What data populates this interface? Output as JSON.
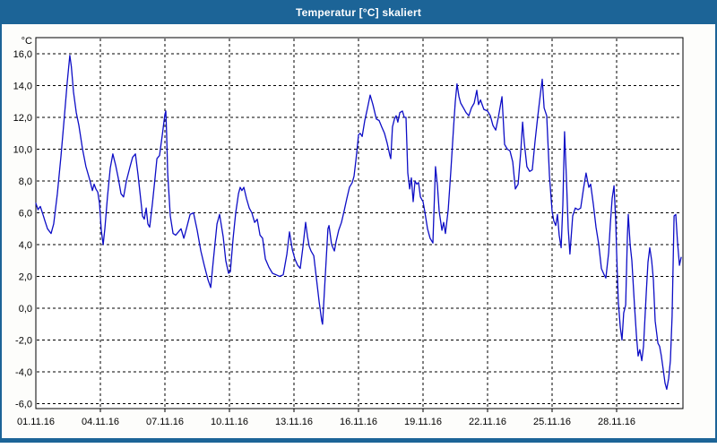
{
  "window": {
    "title": "Temperatur [°C] skaliert"
  },
  "colors": {
    "titlebar": "#1c6497",
    "window_border": "#1c6497",
    "line": "#0d0dc6",
    "grid": "#000000",
    "plot_background": "#ffffff",
    "label_text": "#000000"
  },
  "chart_data": {
    "type": "line",
    "title": "Temperatur [°C] skaliert",
    "unit_label": "°C",
    "series_name": "Temperatur",
    "grid": "dashed",
    "legend": "none",
    "x_axis": {
      "tick_labels": [
        "01.11.16",
        "04.11.16",
        "07.11.16",
        "10.11.16",
        "13.11.16",
        "16.11.16",
        "19.11.16",
        "22.11.16",
        "25.11.16",
        "28.11.16"
      ],
      "tick_days": [
        0,
        3,
        6,
        9,
        12,
        15,
        18,
        21,
        24,
        27
      ],
      "range_days": [
        0,
        30
      ]
    },
    "y_axis": {
      "tick_labels": [
        "16,0",
        "14,0",
        "12,0",
        "10,0",
        "8,0",
        "6,0",
        "4,0",
        "2,0",
        "0,0",
        "-2,0",
        "-4,0",
        "-6,0"
      ],
      "tick_values": [
        16,
        14,
        12,
        10,
        8,
        6,
        4,
        2,
        0,
        -2,
        -4,
        -6
      ],
      "range": [
        -6.3,
        17.0
      ]
    },
    "points": [
      [
        0.0,
        6.6
      ],
      [
        0.1,
        6.2
      ],
      [
        0.21,
        6.4
      ],
      [
        0.33,
        5.9
      ],
      [
        0.42,
        5.5
      ],
      [
        0.54,
        5.0
      ],
      [
        0.71,
        4.7
      ],
      [
        0.83,
        5.3
      ],
      [
        1.0,
        7.2
      ],
      [
        1.17,
        9.6
      ],
      [
        1.33,
        12.1
      ],
      [
        1.46,
        14.2
      ],
      [
        1.58,
        15.9
      ],
      [
        1.65,
        15.2
      ],
      [
        1.75,
        13.6
      ],
      [
        1.88,
        12.3
      ],
      [
        2.0,
        11.5
      ],
      [
        2.17,
        10.0
      ],
      [
        2.33,
        8.9
      ],
      [
        2.5,
        8.1
      ],
      [
        2.63,
        7.4
      ],
      [
        2.71,
        7.8
      ],
      [
        2.79,
        7.5
      ],
      [
        2.88,
        7.3
      ],
      [
        2.96,
        6.6
      ],
      [
        3.04,
        4.9
      ],
      [
        3.13,
        4.0
      ],
      [
        3.21,
        5.0
      ],
      [
        3.33,
        7.0
      ],
      [
        3.46,
        8.8
      ],
      [
        3.58,
        9.7
      ],
      [
        3.71,
        9.0
      ],
      [
        3.83,
        8.2
      ],
      [
        3.96,
        7.2
      ],
      [
        4.08,
        7.0
      ],
      [
        4.21,
        8.0
      ],
      [
        4.38,
        8.9
      ],
      [
        4.5,
        9.5
      ],
      [
        4.63,
        9.7
      ],
      [
        4.75,
        8.4
      ],
      [
        4.88,
        6.8
      ],
      [
        4.96,
        5.8
      ],
      [
        5.04,
        5.6
      ],
      [
        5.13,
        6.3
      ],
      [
        5.21,
        5.3
      ],
      [
        5.29,
        5.1
      ],
      [
        5.42,
        6.6
      ],
      [
        5.54,
        8.2
      ],
      [
        5.63,
        9.4
      ],
      [
        5.75,
        9.6
      ],
      [
        5.88,
        10.9
      ],
      [
        6.0,
        12.2
      ],
      [
        6.04,
        12.4
      ],
      [
        6.08,
        11.0
      ],
      [
        6.13,
        8.5
      ],
      [
        6.25,
        5.8
      ],
      [
        6.38,
        4.7
      ],
      [
        6.5,
        4.6
      ],
      [
        6.63,
        4.8
      ],
      [
        6.75,
        5.0
      ],
      [
        6.88,
        4.4
      ],
      [
        7.0,
        5.0
      ],
      [
        7.17,
        5.9
      ],
      [
        7.33,
        6.0
      ],
      [
        7.5,
        4.9
      ],
      [
        7.67,
        3.6
      ],
      [
        7.83,
        2.7
      ],
      [
        8.0,
        1.8
      ],
      [
        8.13,
        1.3
      ],
      [
        8.25,
        3.0
      ],
      [
        8.42,
        5.3
      ],
      [
        8.54,
        5.9
      ],
      [
        8.71,
        4.5
      ],
      [
        8.83,
        3.0
      ],
      [
        8.96,
        2.2
      ],
      [
        9.04,
        2.3
      ],
      [
        9.17,
        4.4
      ],
      [
        9.29,
        6.0
      ],
      [
        9.42,
        7.2
      ],
      [
        9.5,
        7.6
      ],
      [
        9.58,
        7.4
      ],
      [
        9.67,
        7.6
      ],
      [
        9.79,
        6.9
      ],
      [
        9.92,
        6.3
      ],
      [
        10.04,
        6.0
      ],
      [
        10.17,
        5.4
      ],
      [
        10.29,
        5.6
      ],
      [
        10.42,
        4.6
      ],
      [
        10.54,
        4.4
      ],
      [
        10.67,
        3.1
      ],
      [
        10.83,
        2.6
      ],
      [
        11.0,
        2.2
      ],
      [
        11.17,
        2.1
      ],
      [
        11.33,
        2.0
      ],
      [
        11.5,
        2.1
      ],
      [
        11.67,
        3.4
      ],
      [
        11.79,
        4.8
      ],
      [
        11.92,
        3.7
      ],
      [
        12.04,
        3.1
      ],
      [
        12.17,
        2.7
      ],
      [
        12.29,
        2.5
      ],
      [
        12.42,
        3.9
      ],
      [
        12.54,
        5.4
      ],
      [
        12.63,
        4.5
      ],
      [
        12.71,
        3.9
      ],
      [
        12.79,
        3.6
      ],
      [
        12.92,
        3.3
      ],
      [
        13.04,
        1.9
      ],
      [
        13.17,
        0.4
      ],
      [
        13.29,
        -0.8
      ],
      [
        13.33,
        -1.0
      ],
      [
        13.42,
        1.2
      ],
      [
        13.5,
        3.1
      ],
      [
        13.58,
        5.0
      ],
      [
        13.63,
        5.2
      ],
      [
        13.75,
        4.0
      ],
      [
        13.88,
        3.6
      ],
      [
        13.96,
        4.2
      ],
      [
        14.08,
        4.9
      ],
      [
        14.21,
        5.4
      ],
      [
        14.33,
        6.1
      ],
      [
        14.46,
        6.9
      ],
      [
        14.58,
        7.6
      ],
      [
        14.71,
        7.9
      ],
      [
        14.79,
        8.3
      ],
      [
        14.88,
        9.3
      ],
      [
        14.96,
        10.3
      ],
      [
        15.0,
        10.9
      ],
      [
        15.08,
        11.0
      ],
      [
        15.17,
        10.8
      ],
      [
        15.29,
        11.8
      ],
      [
        15.42,
        12.6
      ],
      [
        15.54,
        13.4
      ],
      [
        15.67,
        12.8
      ],
      [
        15.83,
        11.9
      ],
      [
        15.96,
        11.8
      ],
      [
        16.08,
        11.4
      ],
      [
        16.21,
        11.0
      ],
      [
        16.33,
        10.4
      ],
      [
        16.46,
        9.6
      ],
      [
        16.5,
        9.4
      ],
      [
        16.58,
        11.4
      ],
      [
        16.67,
        11.9
      ],
      [
        16.75,
        12.1
      ],
      [
        16.83,
        11.7
      ],
      [
        16.92,
        12.3
      ],
      [
        17.04,
        12.4
      ],
      [
        17.13,
        12.0
      ],
      [
        17.21,
        12.0
      ],
      [
        17.29,
        8.5
      ],
      [
        17.38,
        7.5
      ],
      [
        17.46,
        8.2
      ],
      [
        17.54,
        6.7
      ],
      [
        17.63,
        8.0
      ],
      [
        17.71,
        7.8
      ],
      [
        17.79,
        7.9
      ],
      [
        17.88,
        7.0
      ],
      [
        17.96,
        6.8
      ],
      [
        18.0,
        6.7
      ],
      [
        18.08,
        6.1
      ],
      [
        18.21,
        5.0
      ],
      [
        18.33,
        4.4
      ],
      [
        18.46,
        4.1
      ],
      [
        18.58,
        8.9
      ],
      [
        18.67,
        7.7
      ],
      [
        18.75,
        6.1
      ],
      [
        18.88,
        4.9
      ],
      [
        18.96,
        5.4
      ],
      [
        19.04,
        4.7
      ],
      [
        19.17,
        6.2
      ],
      [
        19.29,
        8.6
      ],
      [
        19.42,
        11.4
      ],
      [
        19.5,
        13.0
      ],
      [
        19.58,
        14.1
      ],
      [
        19.67,
        13.3
      ],
      [
        19.75,
        12.9
      ],
      [
        19.88,
        12.6
      ],
      [
        20.0,
        12.3
      ],
      [
        20.13,
        12.1
      ],
      [
        20.25,
        12.6
      ],
      [
        20.38,
        12.9
      ],
      [
        20.5,
        13.7
      ],
      [
        20.58,
        12.8
      ],
      [
        20.67,
        13.1
      ],
      [
        20.83,
        12.5
      ],
      [
        21.0,
        12.4
      ],
      [
        21.13,
        12.1
      ],
      [
        21.25,
        11.5
      ],
      [
        21.38,
        11.2
      ],
      [
        21.5,
        12.0
      ],
      [
        21.67,
        13.3
      ],
      [
        21.79,
        10.3
      ],
      [
        21.92,
        10.0
      ],
      [
        22.04,
        9.9
      ],
      [
        22.17,
        9.2
      ],
      [
        22.29,
        7.5
      ],
      [
        22.42,
        7.8
      ],
      [
        22.54,
        9.8
      ],
      [
        22.63,
        11.7
      ],
      [
        22.71,
        10.4
      ],
      [
        22.83,
        8.9
      ],
      [
        22.96,
        8.6
      ],
      [
        23.08,
        8.7
      ],
      [
        23.21,
        10.5
      ],
      [
        23.33,
        12.0
      ],
      [
        23.46,
        13.5
      ],
      [
        23.54,
        14.4
      ],
      [
        23.63,
        12.6
      ],
      [
        23.75,
        12.1
      ],
      [
        23.88,
        8.3
      ],
      [
        24.0,
        6.1
      ],
      [
        24.08,
        5.5
      ],
      [
        24.17,
        5.2
      ],
      [
        24.25,
        5.9
      ],
      [
        24.33,
        4.6
      ],
      [
        24.42,
        3.8
      ],
      [
        24.5,
        6.5
      ],
      [
        24.58,
        11.1
      ],
      [
        24.67,
        8.0
      ],
      [
        24.75,
        5.0
      ],
      [
        24.83,
        3.4
      ],
      [
        24.96,
        5.8
      ],
      [
        25.08,
        6.3
      ],
      [
        25.21,
        6.2
      ],
      [
        25.33,
        6.3
      ],
      [
        25.46,
        7.5
      ],
      [
        25.58,
        8.5
      ],
      [
        25.71,
        7.6
      ],
      [
        25.79,
        7.8
      ],
      [
        25.92,
        6.5
      ],
      [
        26.04,
        5.1
      ],
      [
        26.17,
        4.0
      ],
      [
        26.29,
        2.5
      ],
      [
        26.42,
        2.1
      ],
      [
        26.5,
        1.9
      ],
      [
        26.63,
        3.5
      ],
      [
        26.71,
        5.3
      ],
      [
        26.79,
        6.9
      ],
      [
        26.88,
        7.7
      ],
      [
        26.96,
        5.5
      ],
      [
        27.0,
        3.5
      ],
      [
        27.08,
        0.4
      ],
      [
        27.17,
        -1.2
      ],
      [
        27.25,
        -2.0
      ],
      [
        27.33,
        -0.3
      ],
      [
        27.42,
        0.2
      ],
      [
        27.5,
        4.5
      ],
      [
        27.54,
        5.9
      ],
      [
        27.63,
        4.0
      ],
      [
        27.71,
        3.0
      ],
      [
        27.83,
        0.2
      ],
      [
        27.92,
        -1.7
      ],
      [
        28.0,
        -3.0
      ],
      [
        28.08,
        -2.6
      ],
      [
        28.17,
        -3.3
      ],
      [
        28.25,
        -2.4
      ],
      [
        28.38,
        1.0
      ],
      [
        28.46,
        2.9
      ],
      [
        28.54,
        3.8
      ],
      [
        28.63,
        3.0
      ],
      [
        28.71,
        1.8
      ],
      [
        28.79,
        -0.8
      ],
      [
        28.92,
        -2.2
      ],
      [
        29.0,
        -2.4
      ],
      [
        29.08,
        -3.0
      ],
      [
        29.17,
        -3.9
      ],
      [
        29.25,
        -4.7
      ],
      [
        29.33,
        -5.1
      ],
      [
        29.42,
        -4.4
      ],
      [
        29.5,
        -3.3
      ],
      [
        29.58,
        -0.5
      ],
      [
        29.67,
        5.8
      ],
      [
        29.75,
        5.9
      ],
      [
        29.83,
        4.2
      ],
      [
        29.92,
        2.7
      ],
      [
        30.0,
        3.2
      ]
    ]
  }
}
